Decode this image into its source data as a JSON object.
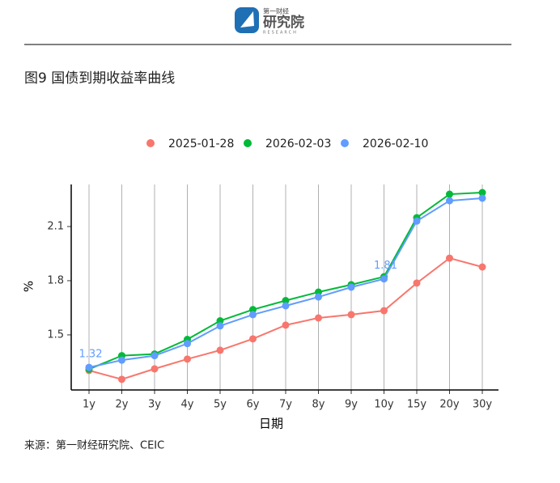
{
  "header": {
    "logo_top": "第一财经",
    "logo_main": "研究院",
    "logo_sub": "RESEARCH"
  },
  "chart_data": {
    "type": "line",
    "title": "图9 国债到期收益率曲线",
    "x_label": "日期",
    "y_label": "%",
    "categories": [
      "1y",
      "2y",
      "3y",
      "4y",
      "5y",
      "6y",
      "7y",
      "8y",
      "9y",
      "10y",
      "15y",
      "20y",
      "30y"
    ],
    "series": [
      {
        "name": "2025-01-28",
        "color": "#f8766d",
        "values": [
          1.303,
          1.254,
          1.312,
          1.366,
          1.415,
          1.478,
          1.554,
          1.594,
          1.612,
          1.634,
          1.787,
          1.925,
          1.876
        ]
      },
      {
        "name": "2026-02-03",
        "color": "#00ba38",
        "values": [
          1.31,
          1.385,
          1.394,
          1.475,
          1.578,
          1.64,
          1.69,
          1.737,
          1.778,
          1.822,
          2.149,
          2.279,
          2.288
        ]
      },
      {
        "name": "2026-02-10",
        "color": "#619cff",
        "values": [
          1.32,
          1.36,
          1.385,
          1.452,
          1.55,
          1.612,
          1.661,
          1.71,
          1.764,
          1.81,
          2.13,
          2.243,
          2.257
        ],
        "value_labels": [
          "1.32",
          null,
          null,
          null,
          null,
          null,
          null,
          null,
          null,
          "1.81",
          null,
          null,
          null
        ]
      }
    ],
    "ylim": [
      1.195,
      2.333
    ],
    "yticks": [
      1.5,
      1.8,
      2.1
    ],
    "grid": "x",
    "legend": "top",
    "source": "来源：第一财经研究院、CEIC"
  }
}
